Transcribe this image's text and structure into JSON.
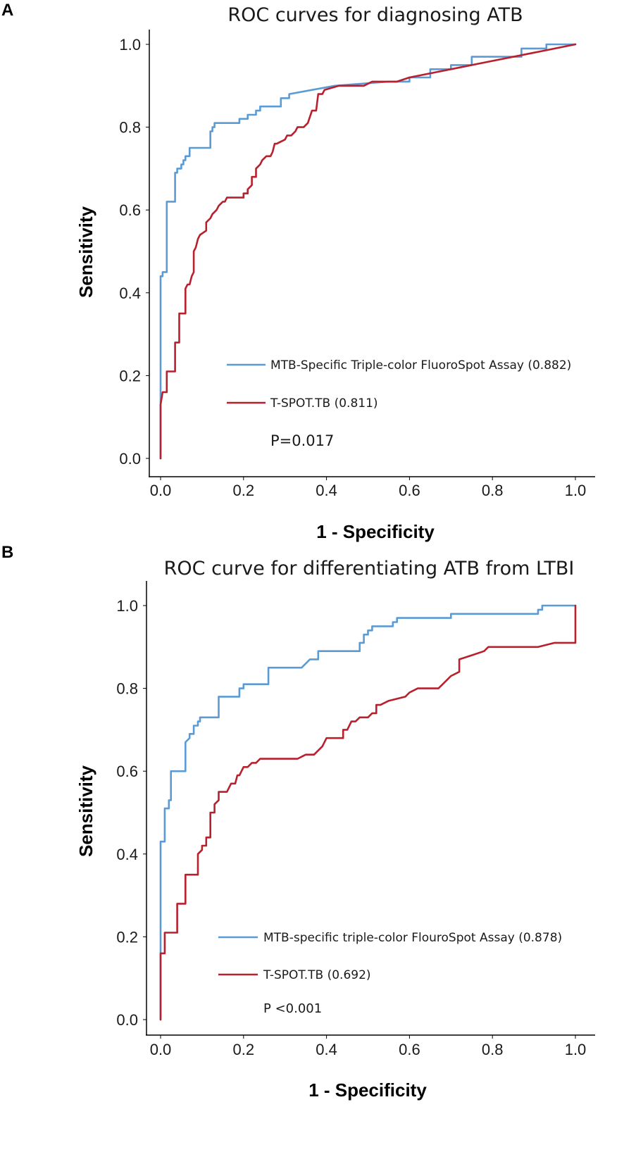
{
  "chart_data": [
    {
      "type": "line",
      "panel_label": "A",
      "title": "ROC curves for diagnosing ATB",
      "xlabel": "1 - Specificity",
      "ylabel": "Sensitivity",
      "xlim": [
        0,
        1
      ],
      "ylim": [
        0,
        1
      ],
      "xticks": [
        "0.0",
        "0.2",
        "0.4",
        "0.6",
        "0.8",
        "1.0"
      ],
      "yticks": [
        "0.0",
        "0.2",
        "0.4",
        "0.6",
        "0.8",
        "1.0"
      ],
      "legend_position": "lower-right",
      "pvalue_text": "P=0.017",
      "series": [
        {
          "name": "MTB-Specific Triple-color FluoroSpot Assay (0.882)",
          "color": "#5b9bd5",
          "points": [
            [
              0.0,
              0.0
            ],
            [
              0.0,
              0.44
            ],
            [
              0.005,
              0.44
            ],
            [
              0.005,
              0.45
            ],
            [
              0.015,
              0.45
            ],
            [
              0.015,
              0.62
            ],
            [
              0.035,
              0.62
            ],
            [
              0.035,
              0.69
            ],
            [
              0.04,
              0.69
            ],
            [
              0.04,
              0.7
            ],
            [
              0.05,
              0.7
            ],
            [
              0.05,
              0.71
            ],
            [
              0.055,
              0.71
            ],
            [
              0.055,
              0.72
            ],
            [
              0.06,
              0.72
            ],
            [
              0.06,
              0.73
            ],
            [
              0.065,
              0.73
            ],
            [
              0.065,
              0.73
            ],
            [
              0.07,
              0.73
            ],
            [
              0.07,
              0.75
            ],
            [
              0.12,
              0.75
            ],
            [
              0.12,
              0.79
            ],
            [
              0.125,
              0.79
            ],
            [
              0.125,
              0.8
            ],
            [
              0.13,
              0.8
            ],
            [
              0.13,
              0.81
            ],
            [
              0.19,
              0.81
            ],
            [
              0.19,
              0.82
            ],
            [
              0.21,
              0.82
            ],
            [
              0.21,
              0.83
            ],
            [
              0.23,
              0.83
            ],
            [
              0.23,
              0.84
            ],
            [
              0.24,
              0.84
            ],
            [
              0.24,
              0.85
            ],
            [
              0.29,
              0.85
            ],
            [
              0.29,
              0.87
            ],
            [
              0.31,
              0.87
            ],
            [
              0.31,
              0.88
            ],
            [
              0.42,
              0.9
            ],
            [
              0.55,
              0.91
            ],
            [
              0.6,
              0.91
            ],
            [
              0.6,
              0.92
            ],
            [
              0.65,
              0.92
            ],
            [
              0.65,
              0.94
            ],
            [
              0.7,
              0.94
            ],
            [
              0.7,
              0.95
            ],
            [
              0.75,
              0.95
            ],
            [
              0.75,
              0.97
            ],
            [
              0.8,
              0.97
            ],
            [
              0.87,
              0.97
            ],
            [
              0.87,
              0.99
            ],
            [
              0.93,
              0.99
            ],
            [
              0.93,
              1.0
            ],
            [
              1.0,
              1.0
            ]
          ]
        },
        {
          "name": "T-SPOT.TB (0.811)",
          "color": "#b8202e",
          "points": [
            [
              0.0,
              0.0
            ],
            [
              0.0,
              0.13
            ],
            [
              0.005,
              0.16
            ],
            [
              0.015,
              0.16
            ],
            [
              0.015,
              0.21
            ],
            [
              0.035,
              0.21
            ],
            [
              0.035,
              0.28
            ],
            [
              0.045,
              0.28
            ],
            [
              0.045,
              0.35
            ],
            [
              0.06,
              0.35
            ],
            [
              0.06,
              0.41
            ],
            [
              0.065,
              0.42
            ],
            [
              0.07,
              0.42
            ],
            [
              0.075,
              0.44
            ],
            [
              0.08,
              0.45
            ],
            [
              0.08,
              0.5
            ],
            [
              0.085,
              0.51
            ],
            [
              0.09,
              0.53
            ],
            [
              0.095,
              0.54
            ],
            [
              0.11,
              0.55
            ],
            [
              0.11,
              0.57
            ],
            [
              0.12,
              0.58
            ],
            [
              0.125,
              0.59
            ],
            [
              0.135,
              0.6
            ],
            [
              0.14,
              0.61
            ],
            [
              0.15,
              0.62
            ],
            [
              0.155,
              0.62
            ],
            [
              0.16,
              0.63
            ],
            [
              0.2,
              0.63
            ],
            [
              0.2,
              0.64
            ],
            [
              0.21,
              0.64
            ],
            [
              0.21,
              0.65
            ],
            [
              0.22,
              0.66
            ],
            [
              0.22,
              0.68
            ],
            [
              0.23,
              0.68
            ],
            [
              0.23,
              0.7
            ],
            [
              0.24,
              0.71
            ],
            [
              0.245,
              0.72
            ],
            [
              0.255,
              0.73
            ],
            [
              0.265,
              0.73
            ],
            [
              0.27,
              0.74
            ],
            [
              0.275,
              0.76
            ],
            [
              0.28,
              0.76
            ],
            [
              0.3,
              0.77
            ],
            [
              0.305,
              0.78
            ],
            [
              0.315,
              0.78
            ],
            [
              0.325,
              0.79
            ],
            [
              0.33,
              0.8
            ],
            [
              0.345,
              0.8
            ],
            [
              0.355,
              0.81
            ],
            [
              0.365,
              0.84
            ],
            [
              0.375,
              0.84
            ],
            [
              0.38,
              0.88
            ],
            [
              0.39,
              0.88
            ],
            [
              0.395,
              0.89
            ],
            [
              0.43,
              0.9
            ],
            [
              0.49,
              0.9
            ],
            [
              0.51,
              0.91
            ],
            [
              0.57,
              0.91
            ],
            [
              0.6,
              0.92
            ],
            [
              0.7,
              0.94
            ],
            [
              0.8,
              0.96
            ],
            [
              0.9,
              0.98
            ],
            [
              1.0,
              1.0
            ]
          ]
        }
      ]
    },
    {
      "type": "line",
      "panel_label": "B",
      "title": "ROC curve for differentiating ATB from LTBI",
      "xlabel": "1 - Specificity",
      "ylabel": "Sensitivity",
      "xlim": [
        0,
        1
      ],
      "ylim": [
        0,
        1
      ],
      "xticks": [
        "0.0",
        "0.2",
        "0.4",
        "0.6",
        "0.8",
        "1.0"
      ],
      "yticks": [
        "0.0",
        "0.2",
        "0.4",
        "0.6",
        "0.8",
        "1.0"
      ],
      "legend_position": "lower-right",
      "pvalue_text": "P <0.001",
      "series": [
        {
          "name": "MTB-specific triple-color FlouroSpot Assay (0.878)",
          "color": "#5b9bd5",
          "points": [
            [
              0.0,
              0.0
            ],
            [
              0.0,
              0.43
            ],
            [
              0.01,
              0.43
            ],
            [
              0.01,
              0.51
            ],
            [
              0.02,
              0.51
            ],
            [
              0.02,
              0.53
            ],
            [
              0.025,
              0.53
            ],
            [
              0.025,
              0.6
            ],
            [
              0.06,
              0.6
            ],
            [
              0.06,
              0.67
            ],
            [
              0.07,
              0.68
            ],
            [
              0.07,
              0.69
            ],
            [
              0.08,
              0.69
            ],
            [
              0.08,
              0.71
            ],
            [
              0.09,
              0.71
            ],
            [
              0.09,
              0.72
            ],
            [
              0.095,
              0.72
            ],
            [
              0.095,
              0.73
            ],
            [
              0.14,
              0.73
            ],
            [
              0.14,
              0.78
            ],
            [
              0.19,
              0.78
            ],
            [
              0.19,
              0.8
            ],
            [
              0.2,
              0.8
            ],
            [
              0.2,
              0.81
            ],
            [
              0.23,
              0.81
            ],
            [
              0.26,
              0.81
            ],
            [
              0.26,
              0.85
            ],
            [
              0.34,
              0.85
            ],
            [
              0.36,
              0.87
            ],
            [
              0.38,
              0.87
            ],
            [
              0.38,
              0.89
            ],
            [
              0.42,
              0.89
            ],
            [
              0.48,
              0.89
            ],
            [
              0.48,
              0.91
            ],
            [
              0.49,
              0.91
            ],
            [
              0.49,
              0.93
            ],
            [
              0.5,
              0.93
            ],
            [
              0.5,
              0.94
            ],
            [
              0.51,
              0.94
            ],
            [
              0.51,
              0.95
            ],
            [
              0.56,
              0.95
            ],
            [
              0.56,
              0.96
            ],
            [
              0.57,
              0.96
            ],
            [
              0.57,
              0.97
            ],
            [
              0.7,
              0.97
            ],
            [
              0.7,
              0.98
            ],
            [
              0.91,
              0.98
            ],
            [
              0.91,
              0.99
            ],
            [
              0.92,
              0.99
            ],
            [
              0.92,
              1.0
            ],
            [
              1.0,
              1.0
            ]
          ]
        },
        {
          "name": "T-SPOT.TB (0.692)",
          "color": "#b8202e",
          "points": [
            [
              0.0,
              0.0
            ],
            [
              0.0,
              0.16
            ],
            [
              0.01,
              0.16
            ],
            [
              0.01,
              0.21
            ],
            [
              0.04,
              0.21
            ],
            [
              0.04,
              0.28
            ],
            [
              0.06,
              0.28
            ],
            [
              0.06,
              0.35
            ],
            [
              0.09,
              0.35
            ],
            [
              0.09,
              0.4
            ],
            [
              0.1,
              0.41
            ],
            [
              0.1,
              0.42
            ],
            [
              0.11,
              0.42
            ],
            [
              0.11,
              0.44
            ],
            [
              0.12,
              0.44
            ],
            [
              0.12,
              0.5
            ],
            [
              0.13,
              0.5
            ],
            [
              0.13,
              0.52
            ],
            [
              0.14,
              0.53
            ],
            [
              0.14,
              0.55
            ],
            [
              0.16,
              0.55
            ],
            [
              0.17,
              0.57
            ],
            [
              0.18,
              0.57
            ],
            [
              0.185,
              0.59
            ],
            [
              0.19,
              0.59
            ],
            [
              0.195,
              0.6
            ],
            [
              0.2,
              0.61
            ],
            [
              0.21,
              0.61
            ],
            [
              0.22,
              0.62
            ],
            [
              0.23,
              0.62
            ],
            [
              0.24,
              0.63
            ],
            [
              0.33,
              0.63
            ],
            [
              0.35,
              0.64
            ],
            [
              0.37,
              0.64
            ],
            [
              0.39,
              0.66
            ],
            [
              0.4,
              0.68
            ],
            [
              0.44,
              0.68
            ],
            [
              0.44,
              0.7
            ],
            [
              0.45,
              0.7
            ],
            [
              0.46,
              0.72
            ],
            [
              0.47,
              0.72
            ],
            [
              0.48,
              0.73
            ],
            [
              0.5,
              0.73
            ],
            [
              0.51,
              0.74
            ],
            [
              0.52,
              0.74
            ],
            [
              0.52,
              0.76
            ],
            [
              0.53,
              0.76
            ],
            [
              0.55,
              0.77
            ],
            [
              0.59,
              0.78
            ],
            [
              0.6,
              0.79
            ],
            [
              0.62,
              0.8
            ],
            [
              0.67,
              0.8
            ],
            [
              0.7,
              0.83
            ],
            [
              0.72,
              0.84
            ],
            [
              0.72,
              0.87
            ],
            [
              0.75,
              0.88
            ],
            [
              0.78,
              0.89
            ],
            [
              0.79,
              0.9
            ],
            [
              0.91,
              0.9
            ],
            [
              0.95,
              0.91
            ],
            [
              1.0,
              0.91
            ],
            [
              1.0,
              1.0
            ]
          ]
        }
      ]
    }
  ]
}
